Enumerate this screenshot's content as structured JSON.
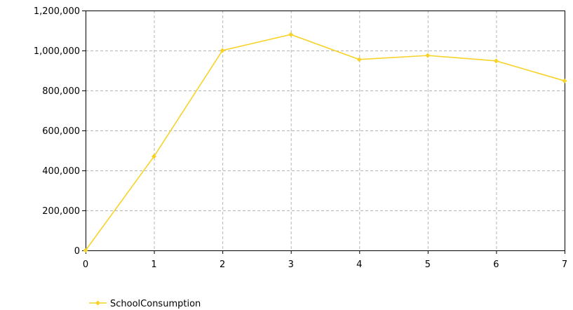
{
  "chart_data": {
    "type": "line",
    "x": [
      0,
      1,
      2,
      3,
      4,
      5,
      6,
      7
    ],
    "xlim": [
      0,
      7
    ],
    "ylim": [
      0,
      1200000
    ],
    "x_ticks": [
      "0",
      "1",
      "2",
      "3",
      "4",
      "5",
      "6",
      "7"
    ],
    "y_ticks": [
      "0",
      "200,000",
      "400,000",
      "600,000",
      "800,000",
      "1,000,000",
      "1,200,000"
    ],
    "y_tick_values": [
      0,
      200000,
      400000,
      600000,
      800000,
      1000000,
      1200000
    ],
    "grid": true,
    "legend_position": "bottom-left",
    "series": [
      {
        "name": "SchoolConsumption",
        "color": "#f7d32a",
        "values": [
          0,
          470000,
          1000000,
          1080000,
          955000,
          975000,
          948000,
          848000
        ]
      }
    ]
  }
}
